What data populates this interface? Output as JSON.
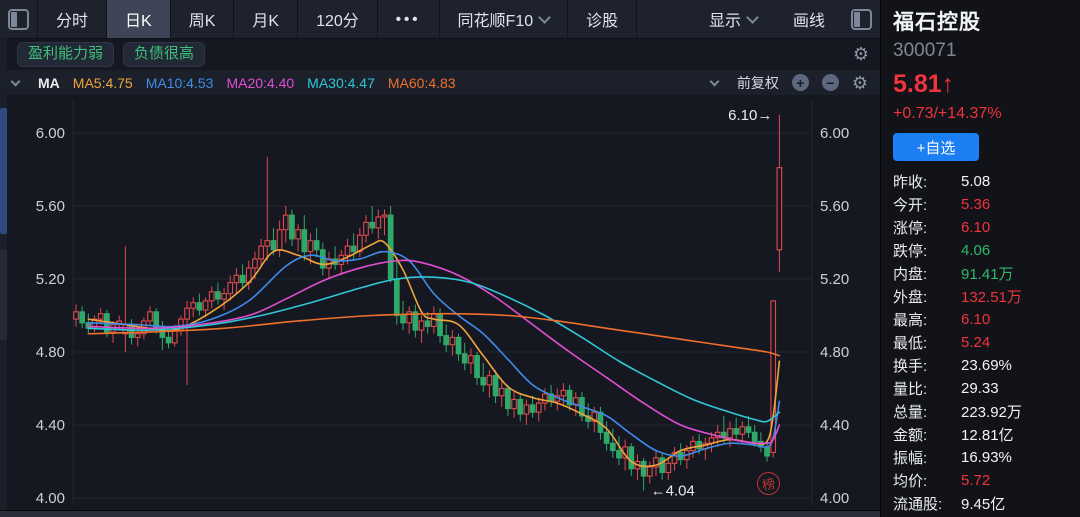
{
  "toolbar": {
    "tabs": [
      {
        "key": "fenshi",
        "label": "分时",
        "active": false
      },
      {
        "key": "rik",
        "label": "日K",
        "active": true
      },
      {
        "key": "zhouk",
        "label": "周K",
        "active": false
      },
      {
        "key": "yuek",
        "label": "月K",
        "active": false
      },
      {
        "key": "m120",
        "label": "120分",
        "active": false
      }
    ],
    "more_label": "•••",
    "f10_label": "同花顺F10",
    "diagnose_label": "诊股",
    "display_label": "显示",
    "draw_label": "画线"
  },
  "tags": [
    "盈利能力弱",
    "负债很高"
  ],
  "ma_bar": {
    "group_label": "MA",
    "items": [
      {
        "label": "MA5:4.75",
        "color": "#f1a43c"
      },
      {
        "label": "MA10:4.53",
        "color": "#3f8ce8"
      },
      {
        "label": "MA20:4.40",
        "color": "#e14ed2"
      },
      {
        "label": "MA30:4.47",
        "color": "#2fc7d8"
      },
      {
        "label": "MA60:4.83",
        "color": "#f0702c"
      }
    ],
    "adjust_label": "前复权"
  },
  "chart_data": {
    "type": "candlestick",
    "title": "福石控股 300071 日K 前复权",
    "visible_bars": 115,
    "y_axis": {
      "ticks": [
        6.0,
        5.6,
        5.2,
        4.8,
        4.4,
        4.0
      ],
      "labels": [
        "6.00",
        "5.60",
        "5.20",
        "4.80",
        "4.40",
        "4.00"
      ],
      "range": [
        3.95,
        6.18
      ],
      "grid": true,
      "sides": "both"
    },
    "colors": {
      "up": "#e04a4d",
      "down": "#2fa969",
      "background": "#151821",
      "grid": "#22262f",
      "axis_text": "#ccd0d8"
    },
    "annotations": [
      {
        "text": "6.10→",
        "bar": 114,
        "price": 6.1,
        "anchor": "end"
      },
      {
        "text": "←4.04",
        "bar": 92,
        "price": 4.04,
        "anchor": "start"
      }
    ],
    "stamp_label": "榜",
    "candles": [
      [
        4.98,
        5.06,
        4.94,
        5.02
      ],
      [
        5.02,
        5.05,
        4.93,
        4.96
      ],
      [
        4.96,
        5.01,
        4.9,
        4.93
      ],
      [
        4.93,
        5.0,
        4.91,
        4.98
      ],
      [
        4.98,
        5.04,
        4.95,
        5.01
      ],
      [
        5.01,
        5.03,
        4.88,
        4.91
      ],
      [
        4.91,
        4.97,
        4.85,
        4.95
      ],
      [
        4.95,
        5.0,
        4.92,
        4.97
      ],
      [
        4.9,
        5.38,
        4.8,
        4.95
      ],
      [
        4.95,
        4.98,
        4.84,
        4.88
      ],
      [
        4.88,
        4.94,
        4.83,
        4.9
      ],
      [
        4.9,
        4.99,
        4.87,
        4.97
      ],
      [
        4.97,
        5.05,
        4.94,
        5.02
      ],
      [
        5.02,
        5.04,
        4.9,
        4.93
      ],
      [
        4.93,
        4.97,
        4.81,
        4.88
      ],
      [
        4.88,
        4.92,
        4.82,
        4.85
      ],
      [
        4.85,
        4.95,
        4.83,
        4.92
      ],
      [
        4.92,
        5.0,
        4.89,
        4.98
      ],
      [
        4.98,
        5.08,
        4.62,
        5.04
      ],
      [
        5.04,
        5.1,
        4.99,
        5.07
      ],
      [
        5.07,
        5.12,
        5.0,
        5.03
      ],
      [
        5.03,
        5.1,
        4.99,
        5.08
      ],
      [
        5.08,
        5.16,
        5.04,
        5.13
      ],
      [
        5.13,
        5.18,
        5.06,
        5.09
      ],
      [
        5.09,
        5.15,
        5.03,
        5.12
      ],
      [
        5.12,
        5.22,
        5.08,
        5.18
      ],
      [
        5.18,
        5.26,
        5.12,
        5.22
      ],
      [
        5.22,
        5.28,
        5.15,
        5.18
      ],
      [
        5.18,
        5.3,
        5.14,
        5.26
      ],
      [
        5.26,
        5.35,
        5.2,
        5.31
      ],
      [
        5.31,
        5.42,
        5.26,
        5.38
      ],
      [
        5.38,
        5.87,
        5.3,
        5.41
      ],
      [
        5.41,
        5.48,
        5.33,
        5.36
      ],
      [
        5.36,
        5.52,
        5.32,
        5.47
      ],
      [
        5.47,
        5.6,
        5.4,
        5.55
      ],
      [
        5.55,
        5.58,
        5.38,
        5.42
      ],
      [
        5.42,
        5.5,
        5.35,
        5.47
      ],
      [
        5.47,
        5.55,
        5.3,
        5.35
      ],
      [
        5.35,
        5.45,
        5.28,
        5.41
      ],
      [
        5.41,
        5.48,
        5.32,
        5.36
      ],
      [
        5.36,
        5.4,
        5.22,
        5.26
      ],
      [
        5.26,
        5.35,
        5.2,
        5.31
      ],
      [
        5.31,
        5.38,
        5.25,
        5.28
      ],
      [
        5.28,
        5.36,
        5.22,
        5.33
      ],
      [
        5.33,
        5.42,
        5.28,
        5.38
      ],
      [
        5.38,
        5.45,
        5.3,
        5.35
      ],
      [
        5.35,
        5.48,
        5.32,
        5.44
      ],
      [
        5.44,
        5.55,
        5.4,
        5.51
      ],
      [
        5.51,
        5.6,
        5.45,
        5.48
      ],
      [
        5.48,
        5.58,
        5.42,
        5.54
      ],
      [
        5.54,
        5.58,
        5.44,
        5.55
      ],
      [
        5.55,
        5.6,
        5.18,
        5.2
      ],
      [
        5.2,
        5.32,
        4.95,
        5.0
      ],
      [
        5.0,
        5.08,
        4.92,
        4.96
      ],
      [
        4.96,
        5.05,
        4.9,
        5.02
      ],
      [
        5.02,
        5.06,
        4.88,
        4.92
      ],
      [
        4.92,
        5.0,
        4.85,
        4.97
      ],
      [
        4.97,
        5.02,
        4.9,
        4.94
      ],
      [
        4.94,
        5.05,
        4.9,
        5.01
      ],
      [
        5.01,
        5.04,
        4.85,
        4.89
      ],
      [
        4.89,
        4.95,
        4.8,
        4.84
      ],
      [
        4.84,
        4.92,
        4.78,
        4.88
      ],
      [
        4.88,
        4.9,
        4.75,
        4.79
      ],
      [
        4.79,
        4.85,
        4.7,
        4.74
      ],
      [
        4.74,
        4.82,
        4.68,
        4.78
      ],
      [
        4.78,
        4.8,
        4.62,
        4.66
      ],
      [
        4.66,
        4.74,
        4.58,
        4.62
      ],
      [
        4.62,
        4.7,
        4.55,
        4.67
      ],
      [
        4.67,
        4.7,
        4.52,
        4.56
      ],
      [
        4.56,
        4.64,
        4.5,
        4.6
      ],
      [
        4.6,
        4.62,
        4.45,
        4.49
      ],
      [
        4.49,
        4.58,
        4.44,
        4.54
      ],
      [
        4.54,
        4.57,
        4.42,
        4.46
      ],
      [
        4.46,
        4.54,
        4.4,
        4.51
      ],
      [
        4.51,
        4.56,
        4.44,
        4.47
      ],
      [
        4.47,
        4.55,
        4.42,
        4.52
      ],
      [
        4.52,
        4.6,
        4.48,
        4.57
      ],
      [
        4.57,
        4.62,
        4.5,
        4.53
      ],
      [
        4.53,
        4.6,
        4.48,
        4.56
      ],
      [
        4.56,
        4.63,
        4.5,
        4.59
      ],
      [
        4.59,
        4.62,
        4.48,
        4.51
      ],
      [
        4.51,
        4.58,
        4.45,
        4.55
      ],
      [
        4.55,
        4.58,
        4.42,
        4.45
      ],
      [
        4.45,
        4.52,
        4.38,
        4.42
      ],
      [
        4.42,
        4.5,
        4.36,
        4.47
      ],
      [
        4.47,
        4.5,
        4.32,
        4.36
      ],
      [
        4.36,
        4.42,
        4.26,
        4.3
      ],
      [
        4.3,
        4.38,
        4.22,
        4.26
      ],
      [
        4.26,
        4.34,
        4.18,
        4.22
      ],
      [
        4.22,
        4.32,
        4.15,
        4.28
      ],
      [
        4.28,
        4.3,
        4.12,
        4.16
      ],
      [
        4.16,
        4.24,
        4.1,
        4.2
      ],
      [
        4.2,
        4.22,
        4.04,
        4.12
      ],
      [
        4.12,
        4.2,
        4.08,
        4.17
      ],
      [
        4.17,
        4.26,
        4.12,
        4.22
      ],
      [
        4.22,
        4.25,
        4.1,
        4.14
      ],
      [
        4.14,
        4.22,
        4.1,
        4.19
      ],
      [
        4.19,
        4.28,
        4.15,
        4.25
      ],
      [
        4.25,
        4.3,
        4.18,
        4.21
      ],
      [
        4.21,
        4.29,
        4.16,
        4.26
      ],
      [
        4.26,
        4.34,
        4.22,
        4.31
      ],
      [
        4.31,
        4.35,
        4.24,
        4.27
      ],
      [
        4.27,
        4.33,
        4.21,
        4.3
      ],
      [
        4.3,
        4.36,
        4.25,
        4.33
      ],
      [
        4.33,
        4.4,
        4.28,
        4.36
      ],
      [
        4.36,
        4.45,
        4.3,
        4.33
      ],
      [
        4.33,
        4.42,
        4.28,
        4.38
      ],
      [
        4.38,
        4.44,
        4.32,
        4.35
      ],
      [
        4.35,
        4.42,
        4.3,
        4.39
      ],
      [
        4.39,
        4.45,
        4.33,
        4.36
      ],
      [
        4.36,
        4.4,
        4.28,
        4.31
      ],
      [
        4.31,
        4.36,
        4.25,
        4.28
      ],
      [
        4.28,
        4.32,
        4.2,
        4.23
      ],
      [
        4.25,
        5.08,
        4.22,
        5.08
      ],
      [
        5.36,
        6.1,
        5.24,
        5.81
      ]
    ],
    "ma_lines": [
      {
        "name": "MA5",
        "color": "#f1a43c",
        "points": [
          [
            2,
            4.98
          ],
          [
            8,
            4.95
          ],
          [
            12,
            4.93
          ],
          [
            16,
            4.92
          ],
          [
            22,
            5.02
          ],
          [
            28,
            5.18
          ],
          [
            32,
            5.35
          ],
          [
            36,
            5.33
          ],
          [
            40,
            5.28
          ],
          [
            44,
            5.32
          ],
          [
            48,
            5.39
          ],
          [
            50,
            5.4
          ],
          [
            53,
            5.25
          ],
          [
            56,
            5.02
          ],
          [
            58,
            4.98
          ],
          [
            62,
            4.95
          ],
          [
            66,
            4.78
          ],
          [
            70,
            4.61
          ],
          [
            74,
            4.55
          ],
          [
            78,
            4.52
          ],
          [
            82,
            4.46
          ],
          [
            86,
            4.38
          ],
          [
            90,
            4.2
          ],
          [
            94,
            4.18
          ],
          [
            98,
            4.26
          ],
          [
            102,
            4.29
          ],
          [
            106,
            4.32
          ],
          [
            110,
            4.3
          ],
          [
            112,
            4.31
          ],
          [
            113,
            4.45
          ],
          [
            114,
            4.75
          ]
        ]
      },
      {
        "name": "MA10",
        "color": "#3f8ce8",
        "points": [
          [
            2,
            4.96
          ],
          [
            10,
            4.95
          ],
          [
            16,
            4.94
          ],
          [
            22,
            4.98
          ],
          [
            28,
            5.08
          ],
          [
            34,
            5.27
          ],
          [
            38,
            5.33
          ],
          [
            42,
            5.3
          ],
          [
            46,
            5.31
          ],
          [
            50,
            5.35
          ],
          [
            54,
            5.3
          ],
          [
            58,
            5.12
          ],
          [
            62,
            5.0
          ],
          [
            66,
            4.9
          ],
          [
            70,
            4.76
          ],
          [
            74,
            4.62
          ],
          [
            78,
            4.55
          ],
          [
            82,
            4.5
          ],
          [
            86,
            4.45
          ],
          [
            90,
            4.35
          ],
          [
            94,
            4.26
          ],
          [
            98,
            4.23
          ],
          [
            102,
            4.27
          ],
          [
            106,
            4.3
          ],
          [
            110,
            4.29
          ],
          [
            112,
            4.28
          ],
          [
            113,
            4.33
          ],
          [
            114,
            4.53
          ]
        ]
      },
      {
        "name": "MA20",
        "color": "#e14ed2",
        "points": [
          [
            2,
            4.94
          ],
          [
            12,
            4.93
          ],
          [
            20,
            4.95
          ],
          [
            28,
            5.0
          ],
          [
            34,
            5.09
          ],
          [
            40,
            5.19
          ],
          [
            46,
            5.26
          ],
          [
            52,
            5.3
          ],
          [
            56,
            5.29
          ],
          [
            62,
            5.22
          ],
          [
            68,
            5.1
          ],
          [
            74,
            4.95
          ],
          [
            80,
            4.8
          ],
          [
            86,
            4.66
          ],
          [
            92,
            4.52
          ],
          [
            98,
            4.4
          ],
          [
            104,
            4.34
          ],
          [
            108,
            4.31
          ],
          [
            112,
            4.3
          ],
          [
            113,
            4.32
          ],
          [
            114,
            4.4
          ]
        ]
      },
      {
        "name": "MA30",
        "color": "#2fc7d8",
        "points": [
          [
            2,
            4.93
          ],
          [
            12,
            4.92
          ],
          [
            22,
            4.95
          ],
          [
            30,
            5.0
          ],
          [
            38,
            5.07
          ],
          [
            46,
            5.15
          ],
          [
            52,
            5.2
          ],
          [
            58,
            5.21
          ],
          [
            64,
            5.18
          ],
          [
            70,
            5.1
          ],
          [
            76,
            5.0
          ],
          [
            82,
            4.88
          ],
          [
            88,
            4.75
          ],
          [
            94,
            4.64
          ],
          [
            100,
            4.54
          ],
          [
            106,
            4.47
          ],
          [
            110,
            4.43
          ],
          [
            112,
            4.42
          ],
          [
            114,
            4.47
          ]
        ]
      },
      {
        "name": "MA60",
        "color": "#f0702c",
        "points": [
          [
            2,
            4.9
          ],
          [
            12,
            4.91
          ],
          [
            24,
            4.93
          ],
          [
            36,
            4.97
          ],
          [
            48,
            5.0
          ],
          [
            60,
            5.01
          ],
          [
            70,
            5.0
          ],
          [
            78,
            4.97
          ],
          [
            86,
            4.93
          ],
          [
            94,
            4.89
          ],
          [
            102,
            4.85
          ],
          [
            108,
            4.82
          ],
          [
            112,
            4.8
          ],
          [
            114,
            4.78
          ]
        ]
      }
    ]
  },
  "quote_panel": {
    "name": "福石控股",
    "code": "300071",
    "price": "5.81↑",
    "change": "+0.73/+14.37%",
    "watch_button": "+自选",
    "colors": {
      "up": "#f1333c",
      "down": "#30b968",
      "neutral": "#f2f3f6"
    },
    "stats": [
      {
        "label": "昨收:",
        "value": "5.08",
        "color": "#f2f3f6"
      },
      {
        "label": "今开:",
        "value": "5.36",
        "color": "#f1333c"
      },
      {
        "label": "涨停:",
        "value": "6.10",
        "color": "#f1333c"
      },
      {
        "label": "跌停:",
        "value": "4.06",
        "color": "#30b968"
      },
      {
        "label": "内盘:",
        "value": "91.41万",
        "color": "#30b968"
      },
      {
        "label": "外盘:",
        "value": "132.51万",
        "color": "#f1333c"
      },
      {
        "label": "最高:",
        "value": "6.10",
        "color": "#f1333c"
      },
      {
        "label": "最低:",
        "value": "5.24",
        "color": "#f1333c"
      },
      {
        "label": "换手:",
        "value": "23.69%",
        "color": "#f2f3f6"
      },
      {
        "label": "量比:",
        "value": "29.33",
        "color": "#f2f3f6"
      },
      {
        "label": "总量:",
        "value": "223.92万",
        "color": "#f2f3f6"
      },
      {
        "label": "金额:",
        "value": "12.81亿",
        "color": "#f2f3f6"
      },
      {
        "label": "振幅:",
        "value": "16.93%",
        "color": "#f2f3f6"
      },
      {
        "label": "均价:",
        "value": "5.72",
        "color": "#f1333c"
      },
      {
        "label": "流通股:",
        "value": "9.45亿",
        "color": "#f2f3f6"
      }
    ]
  }
}
